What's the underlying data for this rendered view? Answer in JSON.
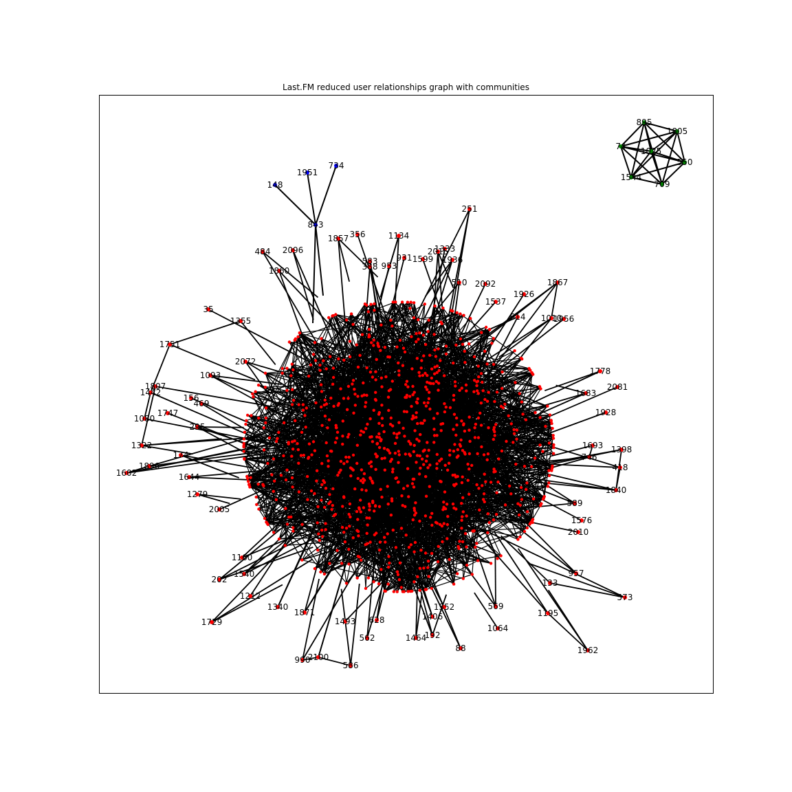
{
  "title": "Last.FM reduced user relationships graph with communities",
  "colors": {
    "background": "#ffffff",
    "frame": "#000000",
    "edge": "#000000",
    "community_red": "#ff0000",
    "community_blue": "#0000ff",
    "community_green": "#008000"
  },
  "communities": [
    {
      "color_key": "community_green",
      "nodes": [
        "895",
        "1805",
        "74",
        "1025",
        "550",
        "1544",
        "709"
      ]
    },
    {
      "color_key": "community_blue",
      "nodes": [
        "148",
        "1951",
        "734",
        "843"
      ]
    },
    {
      "color_key": "community_red",
      "nodes": [
        "251",
        "1857",
        "356",
        "1134",
        "484",
        "2096",
        "1860",
        "1333",
        "2015",
        "1936",
        "583",
        "388",
        "953",
        "931",
        "1599",
        "1867",
        "1926",
        "510",
        "2092",
        "1537",
        "614",
        "1010",
        "1956",
        "35",
        "1355",
        "1751",
        "1093",
        "2081",
        "1778",
        "1442",
        "1807",
        "156",
        "469",
        "1747",
        "1080",
        "295",
        "1928",
        "1322",
        "174",
        "1602",
        "1398",
        "1693",
        "1896",
        "418",
        "746",
        "1644",
        "1840",
        "589",
        "1279",
        "1576",
        "2010",
        "2005",
        "957",
        "573",
        "1195",
        "1962",
        "1064",
        "1340",
        "1212",
        "202",
        "1729",
        "990",
        "2100",
        "586",
        "562",
        "1464",
        "192",
        "88",
        "1493",
        "628",
        "1552",
        "1406",
        "569",
        "133",
        "1683",
        "1540",
        "2072",
        "1871",
        "1160"
      ]
    }
  ]
}
